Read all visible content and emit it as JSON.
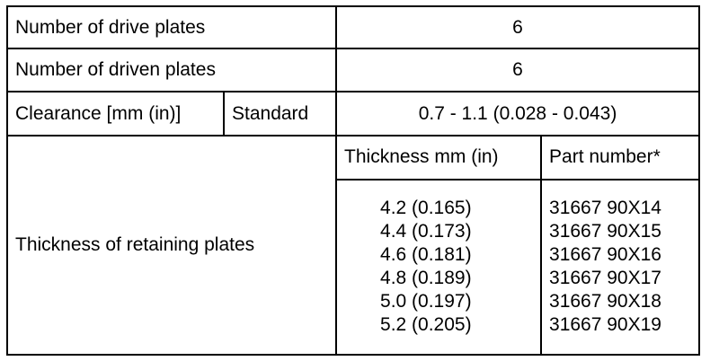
{
  "rows": {
    "drive_plates": {
      "label": "Number of drive plates",
      "value": "6"
    },
    "driven_plates": {
      "label": "Number of driven plates",
      "value": "6"
    },
    "clearance": {
      "label": "Clearance [mm (in)]",
      "sublabel": "Standard",
      "value": "0.7 - 1.1 (0.028 - 0.043)"
    },
    "retaining_plates": {
      "label": "Thickness of retaining plates",
      "header_thickness": "Thickness mm (in)",
      "header_part": "Part number*",
      "items": [
        {
          "thickness": "4.2 (0.165)",
          "part": "31667 90X14"
        },
        {
          "thickness": "4.4 (0.173)",
          "part": "31667 90X15"
        },
        {
          "thickness": "4.6 (0.181)",
          "part": "31667 90X16"
        },
        {
          "thickness": "4.8 (0.189)",
          "part": "31667 90X17"
        },
        {
          "thickness": "5.0 (0.197)",
          "part": "31667 90X18"
        },
        {
          "thickness": "5.2 (0.205)",
          "part": "31667 90X19"
        }
      ]
    }
  }
}
